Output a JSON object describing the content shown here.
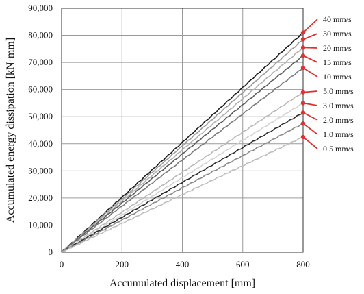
{
  "chart_data": {
    "type": "line",
    "xlabel": "Accumulated displacement [mm]",
    "ylabel": "Accumulated energy dissipation [kN·mm]",
    "xlim": [
      0,
      800
    ],
    "ylim": [
      0,
      90000
    ],
    "xticks": [
      0,
      200,
      400,
      600,
      800
    ],
    "yticks": [
      0,
      10000,
      20000,
      30000,
      40000,
      50000,
      60000,
      70000,
      80000,
      90000
    ],
    "xtick_labels": [
      "0",
      "200",
      "400",
      "600",
      "800"
    ],
    "ytick_labels": [
      "0",
      "10,000",
      "20,000",
      "30,000",
      "40,000",
      "50,000",
      "60,000",
      "70,000",
      "80,000",
      "90,000"
    ],
    "grid": true,
    "legend_placement": "right",
    "marker_color": "#e03030",
    "x": [
      0,
      800
    ],
    "series": [
      {
        "name": "40 mm/s",
        "values": [
          0,
          81000
        ],
        "color": "#1a1a1a"
      },
      {
        "name": "30 mm/s",
        "values": [
          0,
          78500
        ],
        "color": "#9a9a9a"
      },
      {
        "name": "20 mm/s",
        "values": [
          0,
          75500
        ],
        "color": "#b0b0b0"
      },
      {
        "name": "15 mm/s",
        "values": [
          0,
          72500
        ],
        "color": "#5a5a5a"
      },
      {
        "name": "10 mm/s",
        "values": [
          0,
          68000
        ],
        "color": "#7a7a7a"
      },
      {
        "name": "5.0 mm/s",
        "values": [
          0,
          59000
        ],
        "color": "#b8b8b8"
      },
      {
        "name": "3.0 mm/s",
        "values": [
          0,
          55000
        ],
        "color": "#d4d4d4"
      },
      {
        "name": "2.0 mm/s",
        "values": [
          0,
          51500
        ],
        "color": "#2a2a2a"
      },
      {
        "name": "1.0 mm/s",
        "values": [
          0,
          47500
        ],
        "color": "#8a8a8a"
      },
      {
        "name": "0.5 mm/s",
        "values": [
          0,
          42500
        ],
        "color": "#bdbdbd"
      }
    ]
  }
}
